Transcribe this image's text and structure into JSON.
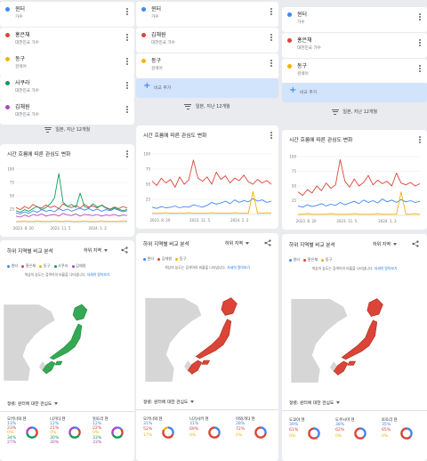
{
  "colors": {
    "blue": "#4285f4",
    "red": "#db4437",
    "yellow": "#f4b400",
    "green": "#0f9d58",
    "purple": "#ab47bc"
  },
  "columns": [
    {
      "terms": [
        {
          "name": "윈터",
          "sub": "가수",
          "color": "#4285f4"
        },
        {
          "name": "홍은채",
          "sub": "대한민국 가수",
          "color": "#db4437"
        },
        {
          "name": "동구",
          "sub": "검색어",
          "color": "#f4b400"
        },
        {
          "name": "사쿠라",
          "sub": "대한민국 가수",
          "color": "#0f9d58"
        },
        {
          "name": "김채원",
          "sub": "대한민국 가수",
          "color": "#ab47bc"
        }
      ],
      "filter": "일본, 지난 12개월",
      "chart_title": "시간 흐름에 따른 관심도 변화",
      "region_title": "하위 지역별 비교 분석",
      "region_select": "하위 지역",
      "legend": [
        "윈터",
        "홍은채",
        "동구",
        "사쿠라",
        "김채원"
      ],
      "note": "색상의 농도는 검색어의 비율을 나타냅니다.",
      "note_link": "자세히 알아보기",
      "sort": "정렬: 윈터에 대한 관심도",
      "regions": [
        {
          "name": "오키나와 현",
          "values": [
            "13%",
            "23%",
            "0%",
            "34%",
            "27%"
          ]
        },
        {
          "name": "니가타 현",
          "values": [
            "12%",
            "21%",
            "0%",
            "30%",
            "30%"
          ]
        },
        {
          "name": "돗토리 현",
          "values": [
            "12%",
            "22%",
            "0%",
            "33%",
            "33%"
          ]
        }
      ]
    },
    {
      "terms": [
        {
          "name": "윈터",
          "sub": "가수",
          "color": "#4285f4"
        },
        {
          "name": "김채원",
          "sub": "대한민국 가수",
          "color": "#db4437"
        },
        {
          "name": "동구",
          "sub": "검색어",
          "color": "#f4b400"
        }
      ],
      "add_label": "비교 추가",
      "filter": "일본, 지난 12개월",
      "chart_title": "시간 흐름에 따른 관심도 변화",
      "region_title": "하위 지역별 비교 분석",
      "region_select": "하위 지역",
      "legend": [
        "윈터",
        "김채원",
        "동구"
      ],
      "note": "색상의 농도는 검색어의 비율을 나타냅니다.",
      "note_link": "자세히 알아보기",
      "sort": "정렬: 윈터에 대한 관심도",
      "regions": [
        {
          "name": "오키나와 현",
          "values": [
            "31%",
            "52%",
            "17%"
          ]
        },
        {
          "name": "나가사키 현",
          "values": [
            "31%",
            "69%",
            "0%"
          ]
        },
        {
          "name": "이와가타 현",
          "values": [
            "28%",
            "72%",
            "0%"
          ]
        }
      ]
    },
    {
      "terms": [
        {
          "name": "윈터",
          "sub": "가수",
          "color": "#4285f4"
        },
        {
          "name": "홍은채",
          "sub": "대한민국 가수",
          "color": "#db4437"
        },
        {
          "name": "동구",
          "sub": "검색어",
          "color": "#f4b400"
        }
      ],
      "add_label": "비교 추가",
      "filter": "일본, 지난 12개월",
      "chart_title": "시간 흐름에 따른 관심도 변화",
      "region_title": "하위 지역별 비교 분석",
      "region_select": "하위 지역",
      "legend": [
        "윈터",
        "홍은채",
        "동구"
      ],
      "note": "색상의 농도는 검색어의 비율을 나타냅니다.",
      "note_link": "자세히 알아보기",
      "sort": "정렬: 윈터에 대한 관심도",
      "regions": [
        {
          "name": "도쿄야 현",
          "values": [
            "39%",
            "61%",
            "0%"
          ]
        },
        {
          "name": "도쿠시마 현",
          "values": [
            "38%",
            "62%",
            "0%"
          ]
        },
        {
          "name": "토토리 현",
          "values": [
            "35%",
            "65%",
            "0%"
          ]
        }
      ]
    }
  ],
  "chart_data": [
    {
      "type": "line",
      "x_ticks": [
        "2023. 8. 20",
        "2023. 11. 5",
        "2024. 1. 2"
      ],
      "y_ticks": [
        "100",
        "75",
        "50",
        "25"
      ],
      "ylim": [
        0,
        100
      ],
      "series": [
        {
          "name": "윈터",
          "values": [
            18,
            16,
            20,
            17,
            22,
            19,
            24,
            21,
            23,
            20,
            26,
            22,
            25,
            21,
            24,
            27,
            23,
            26,
            22,
            25,
            21,
            24,
            22,
            26,
            23,
            20,
            22
          ]
        },
        {
          "name": "홍은채",
          "values": [
            28,
            24,
            30,
            26,
            34,
            29,
            27,
            33,
            28,
            31,
            26,
            35,
            30,
            28,
            32,
            27,
            34,
            29,
            31,
            27,
            33,
            28,
            25,
            29,
            26,
            30,
            27
          ]
        },
        {
          "name": "동구",
          "values": [
            2,
            2,
            3,
            2,
            2,
            3,
            2,
            2,
            2,
            3,
            2,
            2,
            3,
            2,
            2,
            2,
            3,
            2,
            2,
            2,
            3,
            2,
            2,
            2,
            2,
            3,
            2
          ]
        },
        {
          "name": "사쿠라",
          "values": [
            22,
            19,
            24,
            21,
            26,
            30,
            24,
            28,
            35,
            46,
            92,
            38,
            30,
            34,
            28,
            55,
            30,
            27,
            35,
            29,
            32,
            27,
            24,
            28,
            25,
            22,
            24
          ]
        },
        {
          "name": "김채원",
          "values": [
            12,
            10,
            14,
            11,
            15,
            13,
            16,
            12,
            14,
            15,
            12,
            17,
            14,
            13,
            16,
            12,
            15,
            14,
            13,
            15,
            12,
            14,
            13,
            15,
            12,
            14,
            13
          ]
        }
      ]
    },
    {
      "type": "line",
      "x_ticks": [
        "2023. 8. 20",
        "2023. 11. 5",
        "2024. 1. 2"
      ],
      "y_ticks": [
        "100",
        "75",
        "50",
        "25"
      ],
      "ylim": [
        0,
        100
      ],
      "series": [
        {
          "name": "윈터",
          "values": [
            12,
            10,
            13,
            11,
            12,
            14,
            11,
            13,
            12,
            16,
            14,
            12,
            15,
            20,
            17,
            19,
            22,
            18,
            24,
            20,
            23,
            21,
            26,
            22,
            24,
            20,
            22
          ]
        },
        {
          "name": "김채원",
          "values": [
            55,
            48,
            60,
            52,
            58,
            45,
            62,
            50,
            57,
            90,
            60,
            55,
            62,
            50,
            70,
            58,
            64,
            52,
            60,
            56,
            65,
            54,
            50,
            58,
            52,
            56,
            50
          ]
        },
        {
          "name": "동구",
          "values": [
            2,
            2,
            2,
            3,
            2,
            2,
            2,
            2,
            3,
            2,
            2,
            2,
            2,
            3,
            2,
            2,
            2,
            2,
            3,
            2,
            2,
            2,
            38,
            2,
            2,
            3,
            2
          ]
        }
      ]
    },
    {
      "type": "line",
      "x_ticks": [
        "2023. 8. 20",
        "2023. 11. 5",
        "2024. 1. 2"
      ],
      "y_ticks": [
        "100",
        "75",
        "50",
        "25"
      ],
      "ylim": [
        0,
        100
      ],
      "series": [
        {
          "name": "윈터",
          "values": [
            16,
            14,
            18,
            15,
            17,
            20,
            16,
            19,
            17,
            22,
            18,
            21,
            24,
            20,
            26,
            22,
            25,
            21,
            28,
            23,
            26,
            22,
            27,
            23,
            25,
            22,
            24
          ]
        },
        {
          "name": "홍은채",
          "values": [
            40,
            34,
            44,
            38,
            50,
            42,
            55,
            46,
            52,
            95,
            58,
            48,
            62,
            50,
            56,
            68,
            52,
            60,
            54,
            58,
            50,
            72,
            55,
            52,
            56,
            50,
            54
          ]
        },
        {
          "name": "동구",
          "values": [
            2,
            2,
            3,
            2,
            2,
            2,
            2,
            3,
            2,
            2,
            2,
            2,
            3,
            2,
            2,
            2,
            2,
            3,
            2,
            2,
            2,
            2,
            40,
            2,
            2,
            3,
            2
          ]
        }
      ]
    }
  ]
}
